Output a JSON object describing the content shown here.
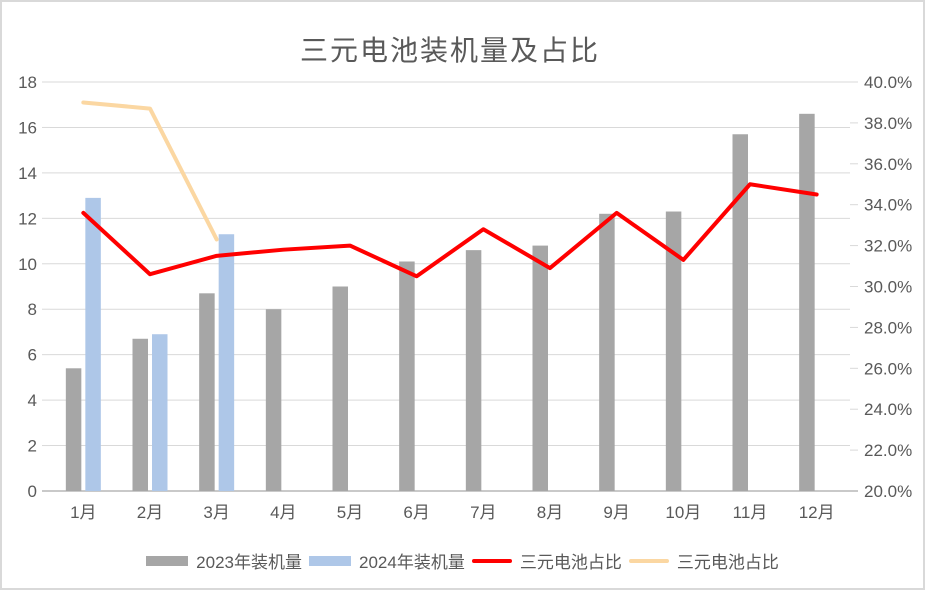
{
  "chart_data": {
    "type": "combo",
    "title": "三元电池装机量及占比",
    "categories": [
      "1月",
      "2月",
      "3月",
      "4月",
      "5月",
      "6月",
      "7月",
      "8月",
      "9月",
      "10月",
      "11月",
      "12月"
    ],
    "series": [
      {
        "key": "bars-2023",
        "name": "2023年装机量",
        "type": "bar",
        "axis": "left",
        "color": "#A6A6A6",
        "values": [
          5.4,
          6.7,
          8.7,
          8.0,
          9.0,
          10.1,
          10.6,
          10.8,
          12.2,
          12.3,
          15.7,
          16.6
        ]
      },
      {
        "key": "bars-2024",
        "name": "2024年装机量",
        "type": "bar",
        "axis": "left",
        "color": "#AEC7E8",
        "values": [
          12.9,
          6.9,
          11.3,
          null,
          null,
          null,
          null,
          null,
          null,
          null,
          null,
          null
        ]
      },
      {
        "key": "share-line-red",
        "name": "三元电池占比",
        "type": "line",
        "axis": "right",
        "color": "#FF0000",
        "values": [
          33.6,
          30.6,
          31.5,
          31.8,
          32.0,
          30.5,
          32.8,
          30.9,
          33.6,
          31.3,
          35.0,
          34.5
        ]
      },
      {
        "key": "share-line-orange",
        "name": "三元电池占比",
        "type": "line",
        "axis": "right",
        "color": "#FBD7A2",
        "values": [
          39.0,
          38.7,
          32.3,
          null,
          null,
          null,
          null,
          null,
          null,
          null,
          null,
          null
        ]
      }
    ],
    "left_axis": {
      "min": 0,
      "max": 18,
      "step": 2,
      "tick_labels": [
        "0",
        "2",
        "4",
        "6",
        "8",
        "10",
        "12",
        "14",
        "16",
        "18"
      ]
    },
    "right_axis": {
      "min": 20,
      "max": 40,
      "step": 2,
      "tick_labels": [
        "20.0%",
        "22.0%",
        "24.0%",
        "26.0%",
        "28.0%",
        "30.0%",
        "32.0%",
        "34.0%",
        "36.0%",
        "38.0%",
        "40.0%"
      ]
    },
    "xlabel": "",
    "ylabel": "",
    "grid": true,
    "legend_position": "bottom",
    "colors": {
      "grid": "#D9D9D9",
      "axis_line": "#C9C9C9",
      "text": "#595959",
      "background": "#FFFFFF",
      "border": "#D9D9D9"
    }
  }
}
